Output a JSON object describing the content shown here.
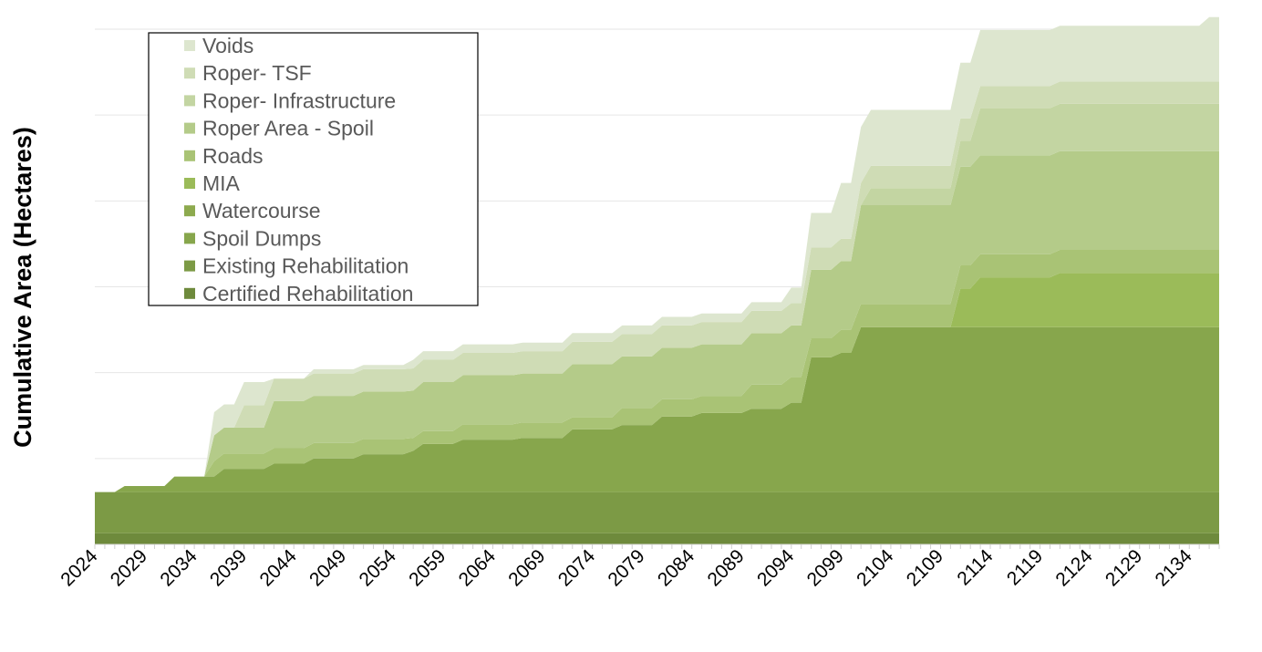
{
  "chart_data": {
    "type": "area",
    "stacked": true,
    "title": "",
    "xlabel": "",
    "ylabel": "Cumulative Area (Hectares)",
    "y_tick_labels_shown": false,
    "grid": true,
    "legend_position": "top-left",
    "x_start": 2024,
    "x_end": 2137,
    "x_tick_labels": [
      "2024",
      "2029",
      "2034",
      "2039",
      "2044",
      "2049",
      "2054",
      "2059",
      "2064",
      "2069",
      "2074",
      "2079",
      "2084",
      "2089",
      "2094",
      "2099",
      "2104",
      "2109",
      "2114",
      "2119",
      "2124",
      "2129",
      "2134"
    ],
    "ylim": [
      0,
      6
    ],
    "series": [
      {
        "name": "Certified Rehabilitation",
        "color": "#6e8a3c",
        "points": [
          [
            2024,
            0.13
          ],
          [
            2137,
            0.13
          ]
        ]
      },
      {
        "name": "Existing Rehabilitation",
        "color": "#7c9a45",
        "points": [
          [
            2024,
            0.48
          ],
          [
            2137,
            0.48
          ]
        ]
      },
      {
        "name": "Spoil Dumps",
        "color": "#87a64c",
        "points": [
          [
            2024,
            0
          ],
          [
            2026,
            0
          ],
          [
            2027,
            0.07
          ],
          [
            2031,
            0.07
          ],
          [
            2032,
            0.18
          ],
          [
            2036,
            0.18
          ],
          [
            2037,
            0.27
          ],
          [
            2039,
            0.27
          ],
          [
            2040,
            0.27
          ],
          [
            2041,
            0.27
          ],
          [
            2042,
            0.33
          ],
          [
            2045,
            0.33
          ],
          [
            2046,
            0.39
          ],
          [
            2050,
            0.39
          ],
          [
            2051,
            0.44
          ],
          [
            2055,
            0.44
          ],
          [
            2056,
            0.48
          ],
          [
            2057,
            0.56
          ],
          [
            2060,
            0.56
          ],
          [
            2061,
            0.61
          ],
          [
            2066,
            0.61
          ],
          [
            2067,
            0.63
          ],
          [
            2071,
            0.63
          ],
          [
            2072,
            0.73
          ],
          [
            2076,
            0.73
          ],
          [
            2077,
            0.78
          ],
          [
            2080,
            0.78
          ],
          [
            2081,
            0.88
          ],
          [
            2084,
            0.88
          ],
          [
            2085,
            0.92
          ],
          [
            2089,
            0.92
          ],
          [
            2090,
            0.97
          ],
          [
            2093,
            0.97
          ],
          [
            2094,
            1.04
          ],
          [
            2095,
            1.04
          ],
          [
            2096,
            1.57
          ],
          [
            2098,
            1.57
          ],
          [
            2099,
            1.62
          ],
          [
            2100,
            1.62
          ],
          [
            2101,
            1.92
          ],
          [
            2137,
            1.92
          ]
        ]
      },
      {
        "name": "Watercourse",
        "color": "#8daa4e",
        "points": [
          [
            2024,
            0
          ],
          [
            2137,
            0
          ]
        ]
      },
      {
        "name": "MIA",
        "color": "#9bbb59",
        "points": [
          [
            2024,
            0
          ],
          [
            2110,
            0
          ],
          [
            2111,
            0.45
          ],
          [
            2112,
            0.45
          ],
          [
            2113,
            0.58
          ],
          [
            2120,
            0.58
          ],
          [
            2121,
            0.63
          ],
          [
            2137,
            0.63
          ]
        ]
      },
      {
        "name": "Roads",
        "color": "#a9c375",
        "points": [
          [
            2024,
            0
          ],
          [
            2035,
            0
          ],
          [
            2036,
            0.18
          ],
          [
            2038,
            0.18
          ],
          [
            2039,
            0.18
          ],
          [
            2041,
            0.18
          ],
          [
            2042,
            0.18
          ],
          [
            2053,
            0.18
          ],
          [
            2054,
            0.18
          ],
          [
            2055,
            0.18
          ],
          [
            2056,
            0.15
          ],
          [
            2058,
            0.15
          ],
          [
            2059,
            0.15
          ],
          [
            2060,
            0.15
          ],
          [
            2061,
            0.18
          ],
          [
            2066,
            0.18
          ],
          [
            2067,
            0.18
          ],
          [
            2071,
            0.18
          ],
          [
            2072,
            0.14
          ],
          [
            2076,
            0.14
          ],
          [
            2077,
            0.2
          ],
          [
            2080,
            0.2
          ],
          [
            2081,
            0.2
          ],
          [
            2084,
            0.2
          ],
          [
            2085,
            0.2
          ],
          [
            2089,
            0.2
          ],
          [
            2090,
            0.28
          ],
          [
            2093,
            0.28
          ],
          [
            2094,
            0.3
          ],
          [
            2095,
            0.3
          ],
          [
            2096,
            0.22
          ],
          [
            2098,
            0.22
          ],
          [
            2099,
            0.27
          ],
          [
            2100,
            0.27
          ],
          [
            2101,
            0.27
          ],
          [
            2137,
            0.27
          ]
        ]
      },
      {
        "name": "Roper Area - Spoil",
        "color": "#b4cb89",
        "points": [
          [
            2024,
            0
          ],
          [
            2035,
            0
          ],
          [
            2036,
            0.3
          ],
          [
            2038,
            0.3
          ],
          [
            2039,
            0.3
          ],
          [
            2041,
            0.3
          ],
          [
            2042,
            0.55
          ],
          [
            2045,
            0.55
          ],
          [
            2046,
            0.55
          ],
          [
            2050,
            0.55
          ],
          [
            2051,
            0.55
          ],
          [
            2055,
            0.55
          ],
          [
            2056,
            0.55
          ],
          [
            2057,
            0.57
          ],
          [
            2060,
            0.57
          ],
          [
            2061,
            0.57
          ],
          [
            2066,
            0.57
          ],
          [
            2067,
            0.57
          ],
          [
            2071,
            0.57
          ],
          [
            2072,
            0.62
          ],
          [
            2076,
            0.62
          ],
          [
            2077,
            0.6
          ],
          [
            2080,
            0.6
          ],
          [
            2081,
            0.6
          ],
          [
            2084,
            0.6
          ],
          [
            2085,
            0.6
          ],
          [
            2089,
            0.6
          ],
          [
            2090,
            0.6
          ],
          [
            2093,
            0.6
          ],
          [
            2094,
            0.6
          ],
          [
            2095,
            0.6
          ],
          [
            2096,
            0.8
          ],
          [
            2098,
            0.8
          ],
          [
            2099,
            0.8
          ],
          [
            2100,
            0.8
          ],
          [
            2101,
            1.15
          ],
          [
            2110,
            1.15
          ],
          [
            2111,
            1.15
          ],
          [
            2112,
            1.15
          ],
          [
            2113,
            1.15
          ],
          [
            2120,
            1.15
          ],
          [
            2121,
            1.15
          ],
          [
            2137,
            1.15
          ]
        ]
      },
      {
        "name": "Roper- Infrastructure",
        "color": "#c3d5a2",
        "points": [
          [
            2024,
            0
          ],
          [
            2101,
            0
          ],
          [
            2102,
            0.2
          ],
          [
            2110,
            0.2
          ],
          [
            2111,
            0.3
          ],
          [
            2112,
            0.3
          ],
          [
            2113,
            0.55
          ],
          [
            2120,
            0.55
          ],
          [
            2121,
            0.55
          ],
          [
            2137,
            0.55
          ]
        ]
      },
      {
        "name": "Roper- TSF",
        "color": "#cfdcb5",
        "points": [
          [
            2024,
            0
          ],
          [
            2035,
            0
          ],
          [
            2036,
            0
          ],
          [
            2038,
            0
          ],
          [
            2039,
            0.26
          ],
          [
            2041,
            0.26
          ],
          [
            2042,
            0.26
          ],
          [
            2045,
            0.26
          ],
          [
            2046,
            0.26
          ],
          [
            2050,
            0.26
          ],
          [
            2051,
            0.26
          ],
          [
            2055,
            0.26
          ],
          [
            2056,
            0.26
          ],
          [
            2057,
            0.26
          ],
          [
            2060,
            0.26
          ],
          [
            2061,
            0.26
          ],
          [
            2066,
            0.26
          ],
          [
            2067,
            0.26
          ],
          [
            2071,
            0.26
          ],
          [
            2072,
            0.26
          ],
          [
            2076,
            0.26
          ],
          [
            2077,
            0.26
          ],
          [
            2080,
            0.26
          ],
          [
            2081,
            0.26
          ],
          [
            2084,
            0.26
          ],
          [
            2085,
            0.26
          ],
          [
            2089,
            0.26
          ],
          [
            2090,
            0.26
          ],
          [
            2093,
            0.26
          ],
          [
            2094,
            0.26
          ],
          [
            2095,
            0.26
          ],
          [
            2096,
            0.26
          ],
          [
            2098,
            0.26
          ],
          [
            2099,
            0.26
          ],
          [
            2100,
            0.26
          ],
          [
            2101,
            0.26
          ],
          [
            2110,
            0.26
          ],
          [
            2111,
            0.26
          ],
          [
            2112,
            0.26
          ],
          [
            2113,
            0.26
          ],
          [
            2120,
            0.26
          ],
          [
            2121,
            0.26
          ],
          [
            2137,
            0.26
          ]
        ]
      },
      {
        "name": "Voids",
        "color": "#dde6cf",
        "points": [
          [
            2024,
            0
          ],
          [
            2035,
            0
          ],
          [
            2036,
            0.27
          ],
          [
            2038,
            0.27
          ],
          [
            2039,
            0.27
          ],
          [
            2041,
            0.27
          ],
          [
            2042,
            0
          ],
          [
            2045,
            0
          ],
          [
            2046,
            0.05
          ],
          [
            2050,
            0.05
          ],
          [
            2051,
            0.05
          ],
          [
            2055,
            0.05
          ],
          [
            2056,
            0.1
          ],
          [
            2057,
            0.1
          ],
          [
            2060,
            0.1
          ],
          [
            2061,
            0.1
          ],
          [
            2066,
            0.1
          ],
          [
            2067,
            0.1
          ],
          [
            2071,
            0.1
          ],
          [
            2072,
            0.1
          ],
          [
            2076,
            0.1
          ],
          [
            2077,
            0.1
          ],
          [
            2080,
            0.1
          ],
          [
            2081,
            0.1
          ],
          [
            2084,
            0.1
          ],
          [
            2085,
            0.1
          ],
          [
            2089,
            0.1
          ],
          [
            2090,
            0.1
          ],
          [
            2093,
            0.1
          ],
          [
            2094,
            0.18
          ],
          [
            2095,
            0.18
          ],
          [
            2096,
            0.4
          ],
          [
            2098,
            0.4
          ],
          [
            2099,
            0.65
          ],
          [
            2100,
            0.65
          ],
          [
            2101,
            0.65
          ],
          [
            2110,
            0.65
          ],
          [
            2111,
            0.65
          ],
          [
            2112,
            0.65
          ],
          [
            2113,
            0.65
          ],
          [
            2120,
            0.65
          ],
          [
            2121,
            0.65
          ],
          [
            2135,
            0.65
          ],
          [
            2136,
            0.75
          ],
          [
            2137,
            0.75
          ]
        ]
      }
    ],
    "legend": [
      "Voids",
      "Roper- TSF",
      "Roper- Infrastructure",
      "Roper Area - Spoil",
      "Roads",
      "MIA",
      "Watercourse",
      "Spoil Dumps",
      "Existing Rehabilitation",
      "Certified Rehabilitation"
    ],
    "legend_colors": [
      "#dde6cf",
      "#cfdcb5",
      "#c3d5a2",
      "#b4cb89",
      "#a9c375",
      "#9bbb59",
      "#8daa4e",
      "#87a64c",
      "#7c9a45",
      "#6e8a3c"
    ]
  }
}
